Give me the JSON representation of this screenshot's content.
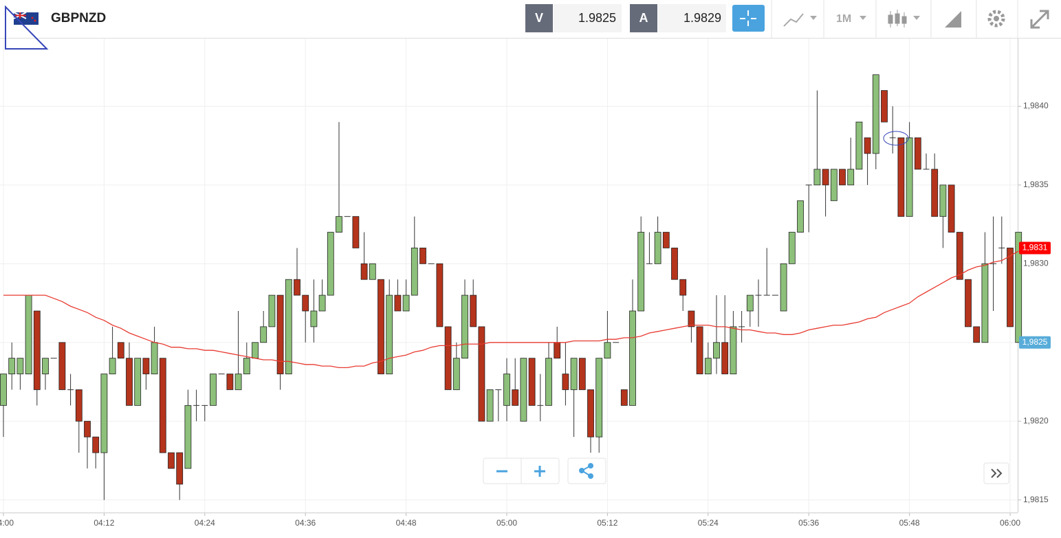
{
  "toolbar": {
    "symbol": "GBPNZD",
    "bid_label": "V",
    "bid": "1.9825",
    "ask_label": "A",
    "ask": "1.9829",
    "timeframe": "1M"
  },
  "chart_data": {
    "type": "candlestick",
    "categories": [
      "04:00",
      "04:01",
      "04:02",
      "04:03",
      "04:04",
      "04:05",
      "04:06",
      "04:07",
      "04:08",
      "04:09",
      "04:10",
      "04:11",
      "04:12",
      "04:13",
      "04:14",
      "04:15",
      "04:16",
      "04:17",
      "04:18",
      "04:19",
      "04:20",
      "04:21",
      "04:22",
      "04:23",
      "04:24",
      "04:25",
      "04:26",
      "04:27",
      "04:28",
      "04:29",
      "04:30",
      "04:31",
      "04:32",
      "04:33",
      "04:34",
      "04:35",
      "04:36",
      "04:37",
      "04:38",
      "04:39",
      "04:40",
      "04:41",
      "04:42",
      "04:43",
      "04:44",
      "04:45",
      "04:46",
      "04:47",
      "04:48",
      "04:49",
      "04:50",
      "04:51",
      "04:52",
      "04:53",
      "04:54",
      "04:55",
      "04:56",
      "04:57",
      "04:58",
      "04:59",
      "05:00",
      "05:01",
      "05:02",
      "05:03",
      "05:04",
      "05:05",
      "05:06",
      "05:07",
      "05:08",
      "05:09",
      "05:10",
      "05:11",
      "05:12",
      "05:13",
      "05:14",
      "05:15",
      "05:16",
      "05:17",
      "05:18",
      "05:19",
      "05:20",
      "05:21",
      "05:22",
      "05:23",
      "05:24",
      "05:25",
      "05:26",
      "05:27",
      "05:28",
      "05:29",
      "05:30",
      "05:31",
      "05:32",
      "05:33",
      "05:34",
      "05:35",
      "05:36",
      "05:37",
      "05:38",
      "05:39",
      "05:40",
      "05:41",
      "05:42",
      "05:43",
      "05:44",
      "05:45",
      "05:46",
      "05:47",
      "05:48",
      "05:49",
      "05:50",
      "05:51",
      "05:52",
      "05:53",
      "05:54",
      "05:55",
      "05:56",
      "05:57",
      "05:58",
      "05:59",
      "06:00",
      "06:01"
    ],
    "open": [
      1.9821,
      1.9823,
      1.9823,
      1.9823,
      1.9827,
      1.9823,
      1.9824,
      1.9825,
      1.9822,
      1.9822,
      1.982,
      1.9819,
      1.9818,
      1.9823,
      1.9825,
      1.9824,
      1.9821,
      1.9824,
      1.9823,
      1.9824,
      1.9818,
      1.9818,
      1.9817,
      1.9821,
      1.9821,
      1.9821,
      1.9823,
      1.9823,
      1.9822,
      1.9823,
      1.9824,
      1.9825,
      1.9826,
      1.9828,
      1.9823,
      1.9829,
      1.9828,
      1.9826,
      1.9827,
      1.9828,
      1.9832,
      1.9833,
      1.9833,
      1.983,
      1.9829,
      1.9829,
      1.9823,
      1.9828,
      1.9827,
      1.9828,
      1.9831,
      1.983,
      1.983,
      1.9826,
      1.9822,
      1.9824,
      1.9828,
      1.9826,
      1.982,
      1.9822,
      1.9821,
      1.9822,
      1.982,
      1.9824,
      1.9821,
      1.9821,
      1.9825,
      1.9823,
      1.9822,
      1.9824,
      1.9822,
      1.9819,
      1.9824,
      1.9825,
      1.9822,
      1.9821,
      1.9827,
      1.983,
      1.983,
      1.9832,
      1.9831,
      1.9829,
      1.9827,
      1.9826,
      1.9823,
      1.9824,
      1.9825,
      1.9823,
      1.9826,
      1.9827,
      1.9828,
      1.9828,
      1.9828,
      1.9827,
      1.983,
      1.9832,
      1.9835,
      1.9835,
      1.9836,
      1.9834,
      1.9836,
      1.9835,
      1.9836,
      1.9838,
      1.9837,
      1.9841,
      1.9838,
      1.9838,
      1.9833,
      1.9838,
      1.9836,
      1.9836,
      1.9833,
      1.9835,
      1.9832,
      1.9829,
      1.9826,
      1.9825,
      1.983,
      1.9831,
      1.9831,
      1.9825
    ],
    "high": [
      1.9823,
      1.9825,
      1.9824,
      1.9828,
      1.9827,
      1.9824,
      1.9824,
      1.9825,
      1.9823,
      1.9822,
      1.982,
      1.9819,
      1.9823,
      1.9826,
      1.9825,
      1.9825,
      1.9824,
      1.9824,
      1.9826,
      1.9824,
      1.9818,
      1.9818,
      1.9822,
      1.9822,
      1.9821,
      1.9823,
      1.9823,
      1.9823,
      1.9827,
      1.9825,
      1.9825,
      1.9827,
      1.9828,
      1.9828,
      1.9829,
      1.9831,
      1.9828,
      1.9829,
      1.9829,
      1.9832,
      1.9839,
      1.9833,
      1.9833,
      1.9832,
      1.983,
      1.9829,
      1.9829,
      1.9829,
      1.9829,
      1.9833,
      1.9831,
      1.983,
      1.983,
      1.9826,
      1.9825,
      1.9829,
      1.9829,
      1.9826,
      1.9822,
      1.9822,
      1.9824,
      1.9824,
      1.9824,
      1.9824,
      1.9823,
      1.9825,
      1.9826,
      1.9825,
      1.9824,
      1.9824,
      1.9822,
      1.9824,
      1.9827,
      1.9825,
      1.9822,
      1.9829,
      1.9833,
      1.9832,
      1.9833,
      1.9832,
      1.9831,
      1.9829,
      1.9827,
      1.9826,
      1.9825,
      1.9828,
      1.9828,
      1.9827,
      1.9827,
      1.9828,
      1.9829,
      1.9831,
      1.9828,
      1.983,
      1.9832,
      1.9834,
      1.9835,
      1.9841,
      1.9836,
      1.9836,
      1.9836,
      1.9838,
      1.9839,
      1.9838,
      1.9842,
      1.9841,
      1.984,
      1.9838,
      1.9839,
      1.9838,
      1.9837,
      1.9837,
      1.9835,
      1.9835,
      1.9832,
      1.9829,
      1.9826,
      1.9832,
      1.9833,
      1.9833,
      1.9831,
      1.9832
    ],
    "low": [
      1.9819,
      1.9822,
      1.9822,
      1.9823,
      1.9821,
      1.9822,
      1.9824,
      1.9822,
      1.9821,
      1.9818,
      1.9817,
      1.9817,
      1.9815,
      1.9823,
      1.9824,
      1.9821,
      1.9821,
      1.9822,
      1.9823,
      1.9818,
      1.9817,
      1.9815,
      1.9817,
      1.982,
      1.982,
      1.9821,
      1.9823,
      1.9822,
      1.9822,
      1.9823,
      1.9824,
      1.9825,
      1.9826,
      1.9822,
      1.9823,
      1.9828,
      1.9825,
      1.9825,
      1.9827,
      1.9828,
      1.9832,
      1.9833,
      1.9831,
      1.9829,
      1.9829,
      1.9823,
      1.9823,
      1.9827,
      1.9827,
      1.9828,
      1.983,
      1.983,
      1.9826,
      1.9822,
      1.9822,
      1.9824,
      1.9826,
      1.982,
      1.982,
      1.982,
      1.982,
      1.9821,
      1.982,
      1.9821,
      1.982,
      1.9821,
      1.9824,
      1.9821,
      1.9819,
      1.9822,
      1.9818,
      1.9818,
      1.9824,
      1.9825,
      1.9821,
      1.9821,
      1.9827,
      1.983,
      1.983,
      1.9831,
      1.9829,
      1.9827,
      1.9825,
      1.9823,
      1.9823,
      1.9823,
      1.9823,
      1.9823,
      1.9825,
      1.9826,
      1.9826,
      1.9828,
      1.9828,
      1.9827,
      1.983,
      1.9832,
      1.9832,
      1.9835,
      1.9833,
      1.9834,
      1.9835,
      1.9835,
      1.9836,
      1.9835,
      1.9836,
      1.9839,
      1.9837,
      1.9833,
      1.9833,
      1.9836,
      1.9836,
      1.9833,
      1.9831,
      1.9832,
      1.9829,
      1.9826,
      1.9825,
      1.9825,
      1.9827,
      1.983,
      1.9826,
      1.9825
    ],
    "close": [
      1.9823,
      1.9824,
      1.9824,
      1.9828,
      1.9822,
      1.9824,
      1.9824,
      1.9822,
      1.9822,
      1.982,
      1.9819,
      1.9818,
      1.9823,
      1.9824,
      1.9824,
      1.9821,
      1.9824,
      1.9823,
      1.9825,
      1.9818,
      1.9817,
      1.9816,
      1.9821,
      1.9821,
      1.9821,
      1.9823,
      1.9823,
      1.9822,
      1.9823,
      1.9824,
      1.9825,
      1.9826,
      1.9828,
      1.9823,
      1.9829,
      1.9828,
      1.9827,
      1.9827,
      1.9828,
      1.9832,
      1.9833,
      1.9833,
      1.9831,
      1.9829,
      1.983,
      1.9823,
      1.9828,
      1.9827,
      1.9828,
      1.9831,
      1.983,
      1.983,
      1.9826,
      1.9822,
      1.9824,
      1.9828,
      1.9826,
      1.982,
      1.9822,
      1.9822,
      1.9823,
      1.9821,
      1.9824,
      1.9821,
      1.9821,
      1.9824,
      1.9824,
      1.9822,
      1.9824,
      1.9822,
      1.9819,
      1.9824,
      1.9825,
      1.9825,
      1.9821,
      1.9827,
      1.9832,
      1.983,
      1.9832,
      1.9831,
      1.9829,
      1.9828,
      1.9826,
      1.9823,
      1.9824,
      1.9825,
      1.9823,
      1.9826,
      1.9826,
      1.9828,
      1.9828,
      1.9828,
      1.9828,
      1.983,
      1.9832,
      1.9834,
      1.9835,
      1.9836,
      1.9835,
      1.9836,
      1.9835,
      1.9836,
      1.9839,
      1.9837,
      1.9842,
      1.9839,
      1.9838,
      1.9833,
      1.9838,
      1.9836,
      1.9836,
      1.9833,
      1.9835,
      1.9832,
      1.9829,
      1.9826,
      1.9825,
      1.983,
      1.983,
      1.9831,
      1.9826,
      1.9832
    ],
    "up_color": "#8dc07a",
    "down_color": "#b5341c",
    "moving_average": {
      "color": "#e83a30",
      "values": [
        1.9828,
        1.9828,
        1.9828,
        1.9828,
        1.9828,
        1.9828,
        1.98278,
        1.98276,
        1.98273,
        1.98271,
        1.98269,
        1.98266,
        1.98264,
        1.98261,
        1.98259,
        1.98256,
        1.98254,
        1.98252,
        1.9825,
        1.98249,
        1.98247,
        1.98247,
        1.98246,
        1.98246,
        1.98245,
        1.98245,
        1.98244,
        1.98243,
        1.98242,
        1.98241,
        1.9824,
        1.98239,
        1.98239,
        1.98238,
        1.98238,
        1.98237,
        1.98236,
        1.98236,
        1.98235,
        1.98235,
        1.98234,
        1.98234,
        1.98235,
        1.98235,
        1.98237,
        1.98238,
        1.9824,
        1.98241,
        1.98242,
        1.98244,
        1.98245,
        1.98247,
        1.98248,
        1.98248,
        1.98248,
        1.98249,
        1.98249,
        1.98249,
        1.9825,
        1.9825,
        1.9825,
        1.9825,
        1.9825,
        1.9825,
        1.9825,
        1.9825,
        1.9825,
        1.9825,
        1.98251,
        1.98251,
        1.98251,
        1.98251,
        1.98252,
        1.98252,
        1.98253,
        1.98253,
        1.98254,
        1.98256,
        1.98257,
        1.98258,
        1.98259,
        1.9826,
        1.98261,
        1.98261,
        1.98261,
        1.9826,
        1.9826,
        1.98259,
        1.98258,
        1.98258,
        1.98257,
        1.98256,
        1.98256,
        1.98255,
        1.98255,
        1.98256,
        1.98258,
        1.98259,
        1.9826,
        1.98261,
        1.98261,
        1.98262,
        1.98263,
        1.98265,
        1.98266,
        1.98269,
        1.98271,
        1.98273,
        1.98275,
        1.98279,
        1.98282,
        1.98285,
        1.98288,
        1.98291,
        1.98293,
        1.98296,
        1.98298,
        1.98299,
        1.98301,
        1.98302,
        1.98305,
        1.98308
      ]
    },
    "price_tags": [
      {
        "value": 1.9831,
        "label": "1,9831",
        "color": "#ff0000"
      },
      {
        "value": 1.9825,
        "label": "1,9825",
        "color": "#58acd9"
      }
    ],
    "ylim": [
      1.98142,
      1.98443
    ],
    "yticks": [
      {
        "value": 1.9815,
        "label": "1,9815"
      },
      {
        "value": 1.982,
        "label": "1,9820"
      },
      {
        "value": 1.9825,
        "label": "1,9825"
      },
      {
        "value": 1.983,
        "label": "1,9830"
      },
      {
        "value": 1.9835,
        "label": "1,9835"
      },
      {
        "value": 1.984,
        "label": "1,9840"
      }
    ],
    "grid": true
  }
}
